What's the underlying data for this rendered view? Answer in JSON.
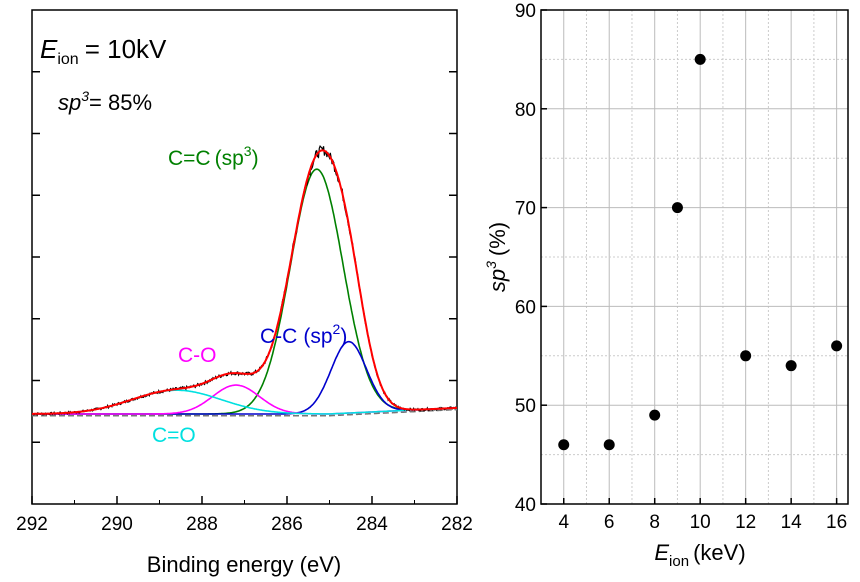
{
  "chart_data": [
    {
      "type": "line",
      "panel": "xps-c1s-spectrum",
      "xlabel": "Binding energy (eV)",
      "ylabel": "",
      "xlim": [
        292,
        282
      ],
      "x_reversed": true,
      "x_ticks": [
        292,
        290,
        288,
        286,
        284,
        282
      ],
      "y_ticks_unlabeled": 7,
      "annotations": {
        "energy_symbol": "E",
        "energy_subscript": "ion",
        "energy_value": "= 10kV",
        "sp3_symbol": "sp",
        "sp3_superscript": "3",
        "sp3_value": "= 85%"
      },
      "series": [
        {
          "label": "C=C",
          "label_sp": "(sp",
          "label_sup": "3",
          "label_end": ")",
          "color": "#008000",
          "center": 285.3,
          "height": 0.72,
          "sigma": 0.62
        },
        {
          "label": "C-C",
          "label_sp": "(sp",
          "label_sup": "2",
          "label_end": ")",
          "color": "#0000cc",
          "center": 284.55,
          "height": 0.21,
          "sigma": 0.42
        },
        {
          "label": "C-O",
          "color": "#ff00ff",
          "center": 287.2,
          "height": 0.085,
          "sigma": 0.55
        },
        {
          "label": "C=O",
          "color": "#00e0e0",
          "center": 288.6,
          "height": 0.07,
          "sigma": 1.05
        }
      ],
      "envelope_color": "#ff0000",
      "raw_color": "#000000",
      "background_color": "#777777"
    },
    {
      "type": "scatter",
      "panel": "sp3-vs-energy",
      "xlabel_symbol": "E",
      "xlabel_subscript": "ion",
      "xlabel_unit": "(keV)",
      "ylabel_symbol": "sp",
      "ylabel_superscript": "3",
      "ylabel_unit": "(%)",
      "xlim": [
        3,
        16.5
      ],
      "ylim": [
        40,
        90
      ],
      "x_ticks": [
        4,
        6,
        8,
        10,
        12,
        14,
        16
      ],
      "y_ticks": [
        40,
        50,
        60,
        70,
        80,
        90
      ],
      "grid": true,
      "x": [
        4,
        6,
        8,
        9,
        10,
        12,
        14,
        16
      ],
      "y": [
        46,
        46,
        49,
        70,
        85,
        55,
        54,
        56
      ],
      "marker_color": "#000000"
    }
  ]
}
